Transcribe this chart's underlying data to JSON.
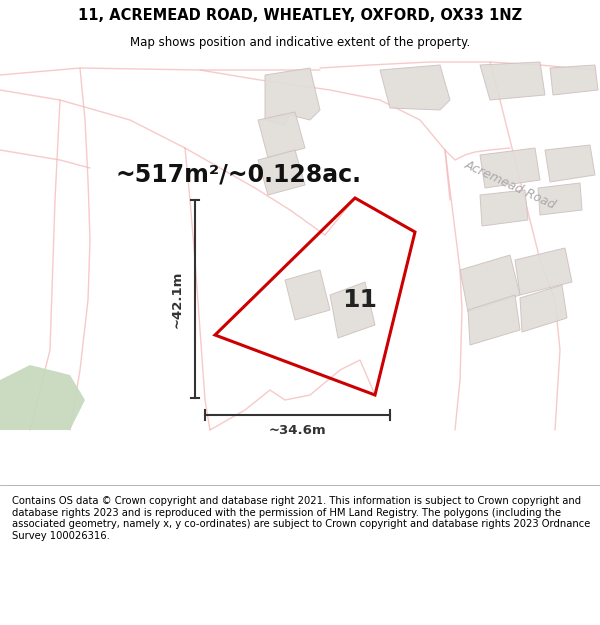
{
  "title": "11, ACREMEAD ROAD, WHEATLEY, OXFORD, OX33 1NZ",
  "subtitle": "Map shows position and indicative extent of the property.",
  "area_label": "~517m²/~0.128ac.",
  "width_label": "~34.6m",
  "height_label": "~42.1m",
  "plot_number": "11",
  "footer": "Contains OS data © Crown copyright and database right 2021. This information is subject to Crown copyright and database rights 2023 and is reproduced with the permission of HM Land Registry. The polygons (including the associated geometry, namely x, y co-ordinates) are subject to Crown copyright and database rights 2023 Ordnance Survey 100026316.",
  "map_bg": "#f9f7f5",
  "road_label": "Acremead Road",
  "highlight_color": "#cc0000",
  "highlight_lw": 2.2,
  "road_color": "#f5b8b8",
  "road_lw": 1.0,
  "building_color": "#e0ddd8",
  "building_edge": "#d0c0c0",
  "dim_color": "#333333",
  "title_fontsize": 10.5,
  "subtitle_fontsize": 8.5,
  "area_fontsize": 17,
  "footer_fontsize": 7.2,
  "plot_num_fontsize": 18,
  "dim_fontsize": 9.5,
  "road_label_fontsize": 9,
  "green_color": "#c5d8bc"
}
